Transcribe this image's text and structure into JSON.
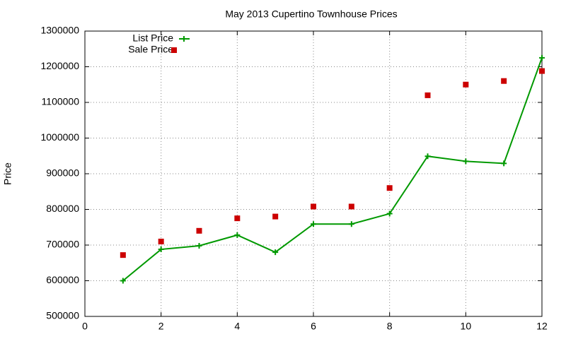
{
  "chart_data": {
    "type": "line",
    "title": "May 2013 Cupertino Townhouse Prices",
    "ylabel": "Price",
    "x": [
      1,
      2,
      3,
      4,
      5,
      6,
      7,
      8,
      9,
      10,
      11,
      12
    ],
    "series": [
      {
        "name": "List Price",
        "color": "#009900",
        "style": "linespoints",
        "values": [
          600000,
          688000,
          698000,
          728000,
          680000,
          759000,
          759000,
          788000,
          949000,
          935000,
          929000,
          1225000
        ]
      },
      {
        "name": "Sale Price",
        "color": "#cc0000",
        "style": "points",
        "values": [
          672000,
          710000,
          740000,
          775000,
          780000,
          808000,
          808000,
          860000,
          1120000,
          1150000,
          1160000,
          1188000
        ]
      }
    ],
    "xlim": [
      0,
      12
    ],
    "xticks": [
      0,
      2,
      4,
      6,
      8,
      10,
      12
    ],
    "ylim": [
      500000,
      1300000
    ],
    "yticks": [
      500000,
      600000,
      700000,
      800000,
      900000,
      1000000,
      1100000,
      1200000,
      1300000
    ],
    "grid": true,
    "legend": "top-left"
  }
}
